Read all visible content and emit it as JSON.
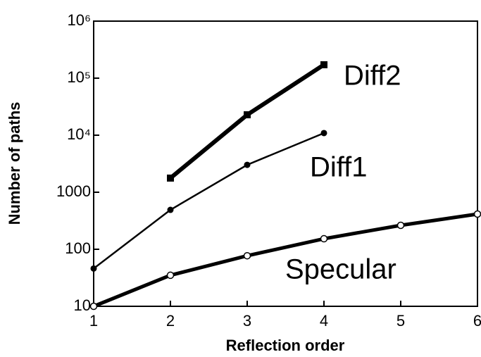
{
  "chart_data": {
    "type": "line",
    "x_label": "Reflection order",
    "y_label": "Number of paths",
    "x": [
      1,
      2,
      3,
      4,
      5,
      6
    ],
    "xlim": [
      1,
      6
    ],
    "xticks": [
      1,
      2,
      3,
      4,
      5,
      6
    ],
    "ylim": [
      10,
      1000000
    ],
    "ylog": true,
    "yticks": [
      10,
      100,
      {
        "value": 1000,
        "label": "1000"
      },
      {
        "value": 10000,
        "label": "10⁴"
      },
      {
        "value": 100000,
        "label": "10⁵"
      },
      {
        "value": 1000000,
        "label": "10⁶"
      }
    ],
    "series": [
      {
        "name": "Specular",
        "color": "#000000",
        "marker": "open-circle",
        "values": [
          10,
          35,
          77,
          153,
          263,
          414
        ]
      },
      {
        "name": "Diff1",
        "color": "#000000",
        "marker": "circle",
        "values": [
          46,
          491,
          3020,
          10900,
          null,
          null
        ]
      },
      {
        "name": "Diff2",
        "color": "#000000",
        "marker": "square",
        "values": [
          null,
          1770,
          22800,
          172000,
          null,
          null
        ]
      }
    ]
  }
}
